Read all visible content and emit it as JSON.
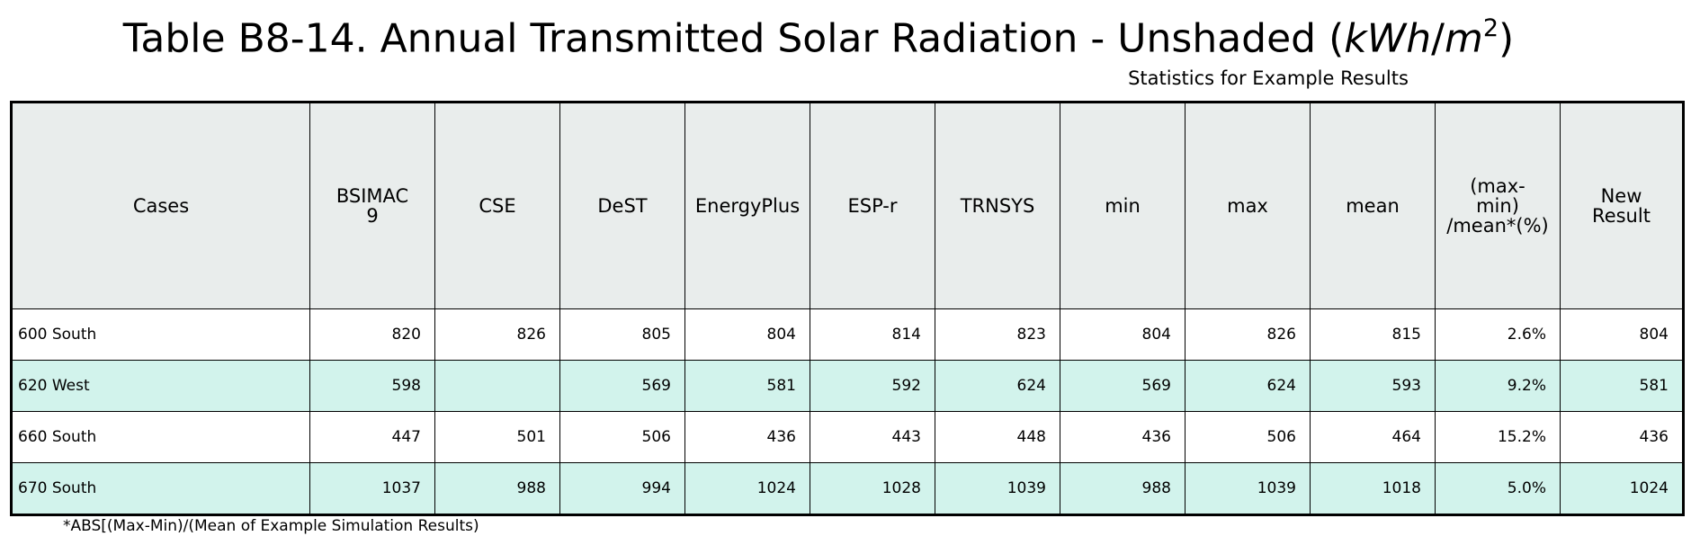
{
  "title": {
    "prefix": "Table B8-14. Annual Transmitted Solar Radiation - Unshaded (",
    "unit_kwh": "kWh",
    "unit_slash": "/",
    "unit_m": "m",
    "unit_exp": "2",
    "suffix": ")"
  },
  "stats_label": "Statistics for Example Results",
  "table": {
    "headers": {
      "cases": "Cases",
      "bsimac_line1": "BSIMAC",
      "bsimac_line2": "9",
      "cse": "CSE",
      "dest": "DeST",
      "energyplus": "EnergyPlus",
      "espr": "ESP-r",
      "trnsys": "TRNSYS",
      "min": "min",
      "max": "max",
      "mean": "mean",
      "range_line1": "(max-",
      "range_line2": "min)",
      "range_line3": "/mean*(%)",
      "new_line1": "New",
      "new_line2": "Result"
    },
    "rows": [
      {
        "case": "600 South",
        "bsimac": "820",
        "cse": "826",
        "dest": "805",
        "energyplus": "804",
        "espr": "814",
        "trnsys": "823",
        "min": "804",
        "max": "826",
        "mean": "815",
        "range": "2.6%",
        "new": "804"
      },
      {
        "case": "620 West",
        "bsimac": "598",
        "cse": "",
        "dest": "569",
        "energyplus": "581",
        "espr": "592",
        "trnsys": "624",
        "min": "569",
        "max": "624",
        "mean": "593",
        "range": "9.2%",
        "new": "581"
      },
      {
        "case": "660 South",
        "bsimac": "447",
        "cse": "501",
        "dest": "506",
        "energyplus": "436",
        "espr": "443",
        "trnsys": "448",
        "min": "436",
        "max": "506",
        "mean": "464",
        "range": "15.2%",
        "new": "436"
      },
      {
        "case": "670 South",
        "bsimac": "1037",
        "cse": "988",
        "dest": "994",
        "energyplus": "1024",
        "espr": "1028",
        "trnsys": "1039",
        "min": "988",
        "max": "1039",
        "mean": "1018",
        "range": "5.0%",
        "new": "1024"
      }
    ]
  },
  "footnote": "*ABS[(Max-Min)/(Mean of Example Simulation Results)",
  "colors": {
    "header_bg": "#e9edec",
    "alt_row_bg": "#d2f3ec",
    "plain_row_bg": "#ffffff"
  }
}
